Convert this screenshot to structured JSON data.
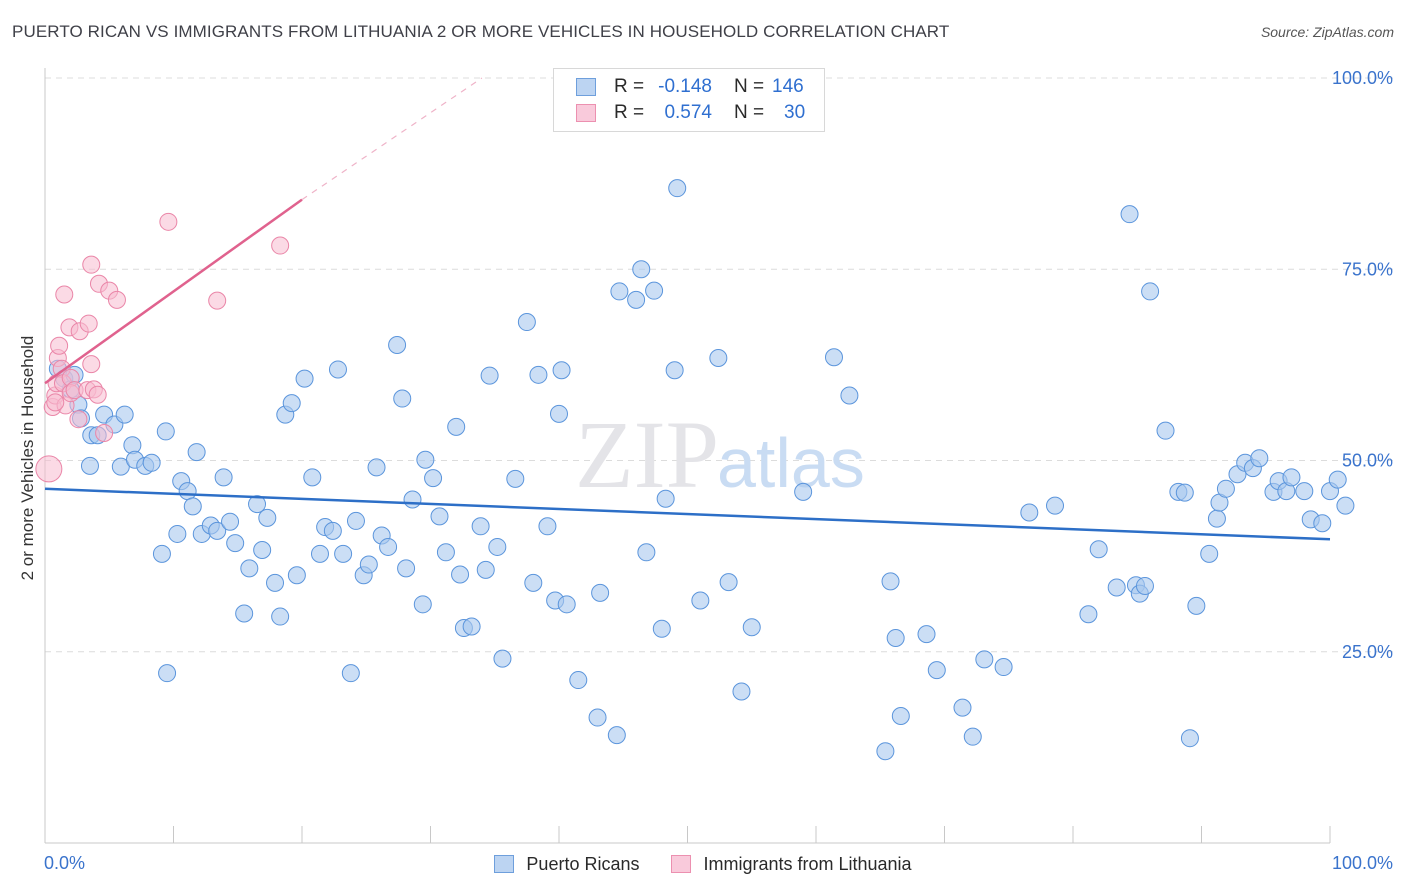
{
  "title": "PUERTO RICAN VS IMMIGRANTS FROM LITHUANIA 2 OR MORE VEHICLES IN HOUSEHOLD CORRELATION CHART",
  "source": "Source: ZipAtlas.com",
  "watermark": {
    "zip": "ZIP",
    "atlas": "atlas"
  },
  "legend": {
    "r_label": "R =",
    "n_label": "N =",
    "series": [
      {
        "r": "-0.148",
        "n": "146"
      },
      {
        "r": "0.574",
        "n": "30"
      }
    ]
  },
  "colors": {
    "blue_fill": "#a9c8ef",
    "blue_stroke": "#5b95dc",
    "blue_line": "#2d6fc7",
    "pink_fill": "#f7bcd0",
    "pink_stroke": "#ea86a8",
    "pink_line": "#e0628e",
    "axis_text": "#3a73cc",
    "grid": "#dcdcdc"
  },
  "chart_data": {
    "type": "scatter",
    "title": "PUERTO RICAN VS IMMIGRANTS FROM LITHUANIA 2 OR MORE VEHICLES IN HOUSEHOLD CORRELATION CHART",
    "xlabel": "",
    "ylabel": "2 or more Vehicles in Household",
    "xlim": [
      0,
      100
    ],
    "ylim": [
      0,
      100
    ],
    "x_tick_labels": [
      "0.0%",
      "100.0%"
    ],
    "y_tick_values": [
      25,
      50,
      75,
      100
    ],
    "y_tick_labels": [
      "25.0%",
      "50.0%",
      "75.0%",
      "100.0%"
    ],
    "grid": true,
    "series": [
      {
        "name": "Puerto Ricans",
        "trend": {
          "x": [
            0,
            100
          ],
          "y": [
            46.3,
            39.7
          ]
        },
        "points": [
          [
            1.0,
            62.0
          ],
          [
            1.5,
            60.7
          ],
          [
            2.0,
            59.3
          ],
          [
            2.3,
            61.2
          ],
          [
            2.6,
            57.3
          ],
          [
            2.8,
            55.5
          ],
          [
            3.6,
            53.3
          ],
          [
            4.1,
            53.3
          ],
          [
            3.5,
            49.3
          ],
          [
            4.6,
            56.0
          ],
          [
            5.4,
            54.7
          ],
          [
            5.9,
            49.2
          ],
          [
            6.2,
            56.0
          ],
          [
            6.8,
            52.0
          ],
          [
            7.0,
            50.1
          ],
          [
            7.8,
            49.3
          ],
          [
            8.3,
            49.7
          ],
          [
            9.1,
            37.8
          ],
          [
            9.5,
            22.2
          ],
          [
            9.4,
            53.8
          ],
          [
            10.3,
            40.4
          ],
          [
            10.6,
            47.3
          ],
          [
            11.1,
            46.0
          ],
          [
            11.5,
            44.0
          ],
          [
            11.8,
            51.1
          ],
          [
            12.2,
            40.4
          ],
          [
            12.9,
            41.5
          ],
          [
            13.4,
            40.8
          ],
          [
            13.9,
            47.8
          ],
          [
            14.4,
            42.0
          ],
          [
            14.8,
            39.2
          ],
          [
            15.5,
            30.0
          ],
          [
            15.9,
            35.9
          ],
          [
            16.5,
            44.3
          ],
          [
            16.9,
            38.3
          ],
          [
            17.3,
            42.5
          ],
          [
            17.9,
            34.0
          ],
          [
            18.3,
            29.6
          ],
          [
            18.7,
            56.0
          ],
          [
            19.2,
            57.5
          ],
          [
            19.6,
            35.0
          ],
          [
            20.2,
            60.7
          ],
          [
            20.8,
            47.8
          ],
          [
            21.4,
            37.8
          ],
          [
            21.8,
            41.3
          ],
          [
            22.4,
            40.8
          ],
          [
            22.8,
            61.9
          ],
          [
            23.2,
            37.8
          ],
          [
            23.8,
            22.2
          ],
          [
            24.2,
            42.1
          ],
          [
            24.8,
            35.0
          ],
          [
            25.2,
            36.4
          ],
          [
            25.8,
            49.1
          ],
          [
            26.2,
            40.2
          ],
          [
            26.7,
            38.7
          ],
          [
            27.4,
            65.1
          ],
          [
            27.8,
            58.1
          ],
          [
            28.1,
            35.9
          ],
          [
            28.6,
            44.9
          ],
          [
            29.4,
            31.2
          ],
          [
            29.6,
            50.1
          ],
          [
            30.2,
            47.7
          ],
          [
            30.7,
            42.7
          ],
          [
            31.2,
            38.0
          ],
          [
            32.0,
            54.4
          ],
          [
            32.3,
            35.1
          ],
          [
            32.6,
            28.1
          ],
          [
            33.2,
            28.3
          ],
          [
            33.9,
            41.4
          ],
          [
            34.3,
            35.7
          ],
          [
            34.6,
            61.1
          ],
          [
            35.2,
            38.7
          ],
          [
            35.6,
            24.1
          ],
          [
            36.6,
            47.6
          ],
          [
            37.5,
            68.1
          ],
          [
            38.0,
            34.0
          ],
          [
            38.4,
            61.2
          ],
          [
            39.1,
            41.4
          ],
          [
            39.7,
            31.7
          ],
          [
            40.0,
            56.1
          ],
          [
            40.2,
            61.8
          ],
          [
            40.6,
            31.2
          ],
          [
            41.5,
            21.3
          ],
          [
            43.0,
            16.4
          ],
          [
            43.2,
            32.7
          ],
          [
            44.5,
            14.1
          ],
          [
            44.7,
            72.1
          ],
          [
            46.0,
            71.0
          ],
          [
            46.4,
            75.0
          ],
          [
            46.8,
            38.0
          ],
          [
            47.4,
            72.2
          ],
          [
            48.0,
            28.0
          ],
          [
            48.3,
            45.0
          ],
          [
            49.0,
            61.8
          ],
          [
            49.2,
            85.6
          ],
          [
            51.0,
            31.7
          ],
          [
            52.4,
            63.4
          ],
          [
            53.2,
            34.1
          ],
          [
            54.2,
            19.8
          ],
          [
            55.0,
            28.2
          ],
          [
            59.0,
            45.9
          ],
          [
            61.4,
            63.5
          ],
          [
            62.6,
            58.5
          ],
          [
            65.4,
            12.0
          ],
          [
            65.8,
            34.2
          ],
          [
            66.2,
            26.8
          ],
          [
            66.6,
            16.6
          ],
          [
            68.6,
            27.3
          ],
          [
            69.4,
            22.6
          ],
          [
            71.4,
            17.7
          ],
          [
            72.2,
            13.9
          ],
          [
            73.1,
            24.0
          ],
          [
            74.6,
            23.0
          ],
          [
            76.6,
            43.2
          ],
          [
            78.6,
            44.1
          ],
          [
            81.2,
            29.9
          ],
          [
            82.0,
            38.4
          ],
          [
            83.4,
            33.4
          ],
          [
            84.4,
            82.2
          ],
          [
            84.9,
            33.7
          ],
          [
            85.2,
            32.6
          ],
          [
            85.6,
            33.6
          ],
          [
            86.0,
            72.1
          ],
          [
            87.2,
            53.9
          ],
          [
            88.2,
            45.9
          ],
          [
            88.7,
            45.8
          ],
          [
            89.1,
            13.7
          ],
          [
            89.6,
            31.0
          ],
          [
            90.6,
            37.8
          ],
          [
            91.2,
            42.4
          ],
          [
            91.4,
            44.5
          ],
          [
            91.9,
            46.3
          ],
          [
            92.8,
            48.2
          ],
          [
            93.4,
            49.7
          ],
          [
            94.0,
            49.0
          ],
          [
            94.5,
            50.3
          ],
          [
            95.6,
            45.9
          ],
          [
            96.0,
            47.3
          ],
          [
            96.6,
            46.0
          ],
          [
            97.0,
            47.8
          ],
          [
            98.0,
            46.0
          ],
          [
            98.5,
            42.3
          ],
          [
            99.4,
            41.8
          ],
          [
            100.0,
            46.0
          ],
          [
            100.6,
            47.5
          ],
          [
            101.2,
            44.1
          ]
        ]
      },
      {
        "name": "Immigrants from Lithuania",
        "trend": {
          "x": [
            0,
            20
          ],
          "y": [
            60.1,
            84.1
          ]
        },
        "trend_extended": {
          "x": [
            20,
            34
          ],
          "y": [
            84.1,
            100.0
          ]
        },
        "points": [
          [
            0.3,
            48.9
          ],
          [
            0.6,
            57.0
          ],
          [
            0.8,
            58.5
          ],
          [
            0.9,
            60.1
          ],
          [
            1.0,
            63.4
          ],
          [
            1.1,
            65.0
          ],
          [
            1.3,
            62.0
          ],
          [
            1.4,
            60.1
          ],
          [
            1.5,
            71.7
          ],
          [
            1.6,
            57.2
          ],
          [
            1.9,
            67.4
          ],
          [
            2.0,
            60.8
          ],
          [
            2.0,
            58.8
          ],
          [
            2.3,
            59.2
          ],
          [
            2.6,
            55.4
          ],
          [
            2.7,
            66.9
          ],
          [
            3.3,
            59.2
          ],
          [
            3.4,
            67.9
          ],
          [
            3.6,
            75.6
          ],
          [
            3.8,
            59.3
          ],
          [
            4.1,
            58.6
          ],
          [
            4.2,
            73.1
          ],
          [
            4.6,
            53.6
          ],
          [
            5.0,
            72.2
          ],
          [
            5.6,
            71.0
          ],
          [
            3.6,
            62.6
          ],
          [
            9.6,
            81.2
          ],
          [
            13.4,
            70.9
          ],
          [
            18.3,
            78.1
          ],
          [
            0.8,
            57.6
          ]
        ]
      }
    ]
  }
}
